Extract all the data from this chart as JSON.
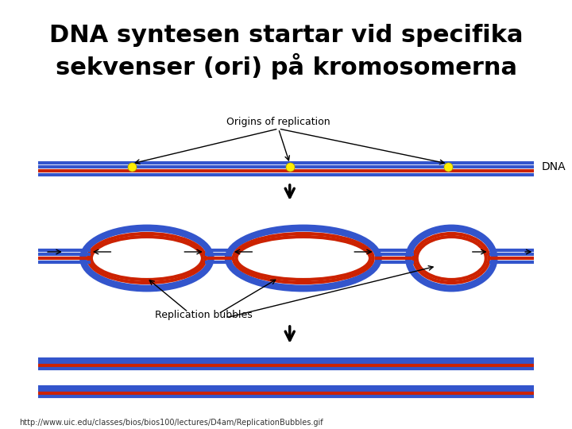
{
  "title_line1": "DNA syntesen startar vid specifika",
  "title_line2": "sekvenser (ori) på kromosomerna",
  "title_fontsize": 22,
  "title_fontweight": "bold",
  "bg_color": "#ffffff",
  "blue_color": "#3355cc",
  "red_color": "#cc2200",
  "yellow_color": "#ffee00",
  "black_color": "#000000",
  "url_text": "http://www.uic.edu/classes/bios/bios100/lectures/D4am/ReplicationBubbles.gif",
  "url_fontsize": 7,
  "dna_label": "DNA",
  "origins_label": "Origins of replication",
  "bubbles_label": "Replication bubbles"
}
